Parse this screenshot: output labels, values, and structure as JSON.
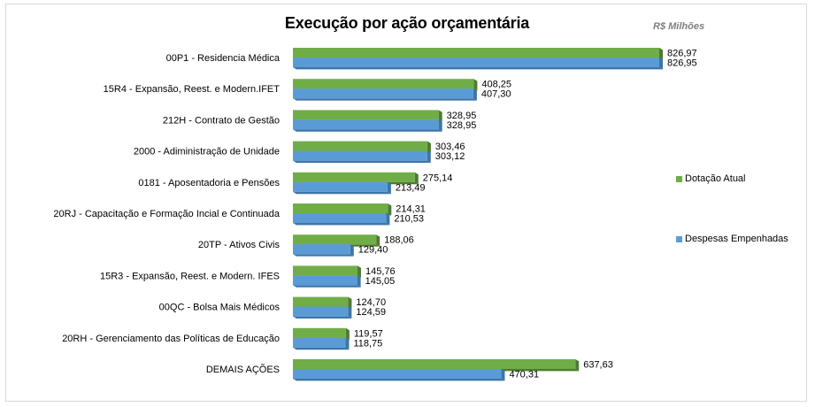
{
  "chart_data": {
    "type": "bar",
    "orientation": "horizontal",
    "title": "Execução por ação orçamentária",
    "units_note": "R$ Milhões",
    "categories": [
      "00P1 - Residencia Médica",
      "15R4 - Expansão, Reest. e Modern.IFET",
      "212H - Contrato de Gestão",
      "2000 - Adiministração de Unidade",
      "0181 - Aposentadoria e Pensões",
      "20RJ - Capacitação e Formação Incial e Continuada",
      "20TP - Ativos Civis",
      "15R3 - Expansão, Reest. e Modern. IFES",
      "00QC - Bolsa Mais Médicos",
      "20RH - Gerenciamento das Políticas de Educação",
      "DEMAIS AÇÕES"
    ],
    "series": [
      {
        "name": "Dotação Atual",
        "color": "#70ad47",
        "values": [
          826.97,
          408.25,
          328.95,
          303.46,
          275.14,
          214.31,
          188.06,
          145.76,
          124.7,
          119.57,
          637.63
        ],
        "labels": [
          "826,97",
          "408,25",
          "328,95",
          "303,46",
          "275,14",
          "214,31",
          "188,06",
          "145,76",
          "124,70",
          "119,57",
          "637,63"
        ]
      },
      {
        "name": "Despesas Empenhadas",
        "color": "#5b9bd5",
        "values": [
          826.95,
          407.3,
          328.95,
          303.12,
          213.49,
          210.53,
          129.4,
          145.05,
          124.59,
          118.75,
          470.31
        ],
        "labels": [
          "826,95",
          "407,30",
          "328,95",
          "303,12",
          "213,49",
          "210,53",
          "129,40",
          "145,05",
          "124,59",
          "118,75",
          "470,31"
        ]
      }
    ],
    "xlim": [
      0,
      826.97
    ],
    "grid": false,
    "legend_position": "right"
  }
}
